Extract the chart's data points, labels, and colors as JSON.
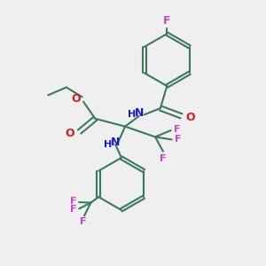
{
  "bg_color": "#efefef",
  "bond_color": "#3a7a5a",
  "bond_width": 1.5,
  "N_color": "#1a1acc",
  "O_color": "#cc2020",
  "F_color": "#cc44cc",
  "figsize": [
    3.0,
    3.0
  ],
  "dpi": 100,
  "xlim": [
    0,
    10
  ],
  "ylim": [
    0,
    10
  ]
}
